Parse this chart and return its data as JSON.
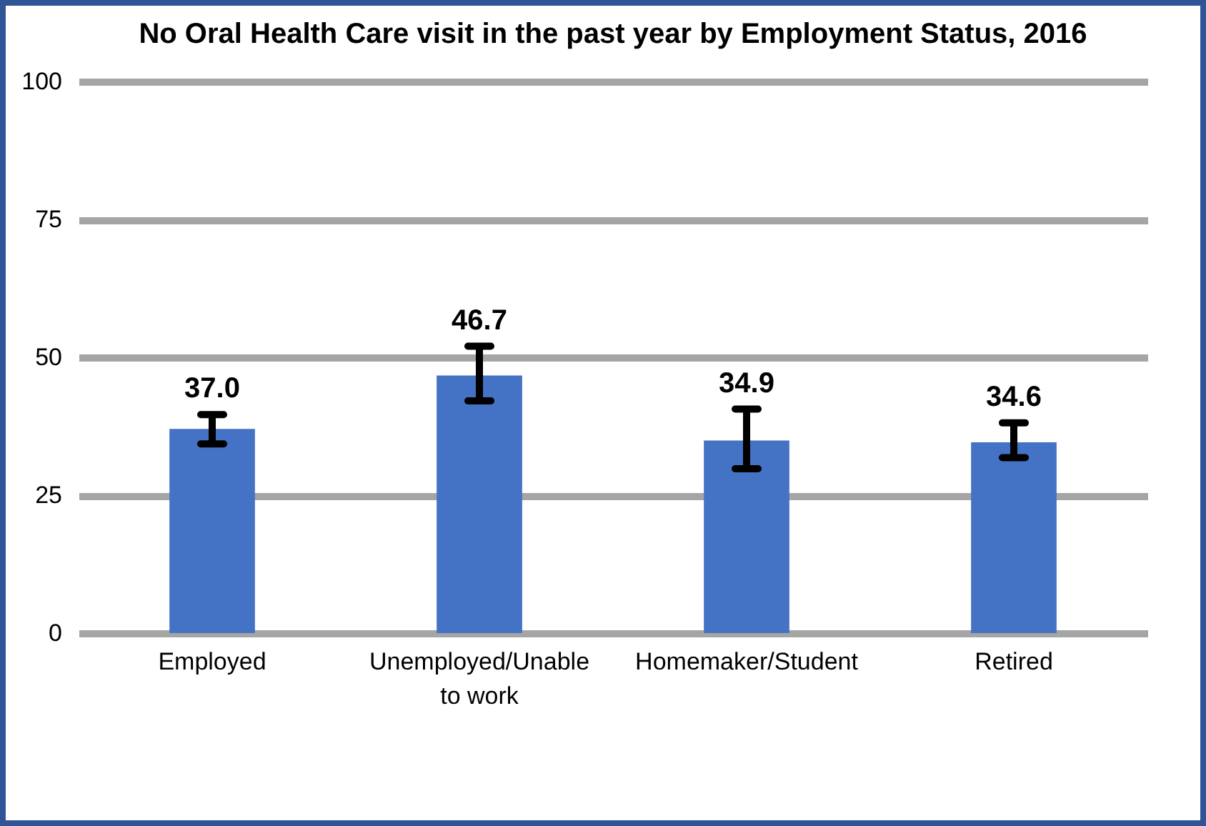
{
  "chart_data": {
    "type": "bar",
    "title": "No Oral Health Care visit in the past year by Employment Status, 2016",
    "categories": [
      "Employed",
      "Unemployed/Unable to work",
      "Homemaker/Student",
      "Retired"
    ],
    "values": [
      37.0,
      46.7,
      34.9,
      34.6
    ],
    "errors": [
      [
        34.3,
        39.6
      ],
      [
        42.1,
        52.0
      ],
      [
        29.8,
        40.6
      ],
      [
        31.8,
        38.1
      ]
    ],
    "value_labels": [
      "37.0",
      "46.7",
      "34.9",
      "34.6"
    ],
    "color": "#4472c4",
    "ylim": [
      0,
      100
    ],
    "yticks": [
      0,
      25,
      50,
      75,
      100
    ],
    "grid": "y"
  }
}
